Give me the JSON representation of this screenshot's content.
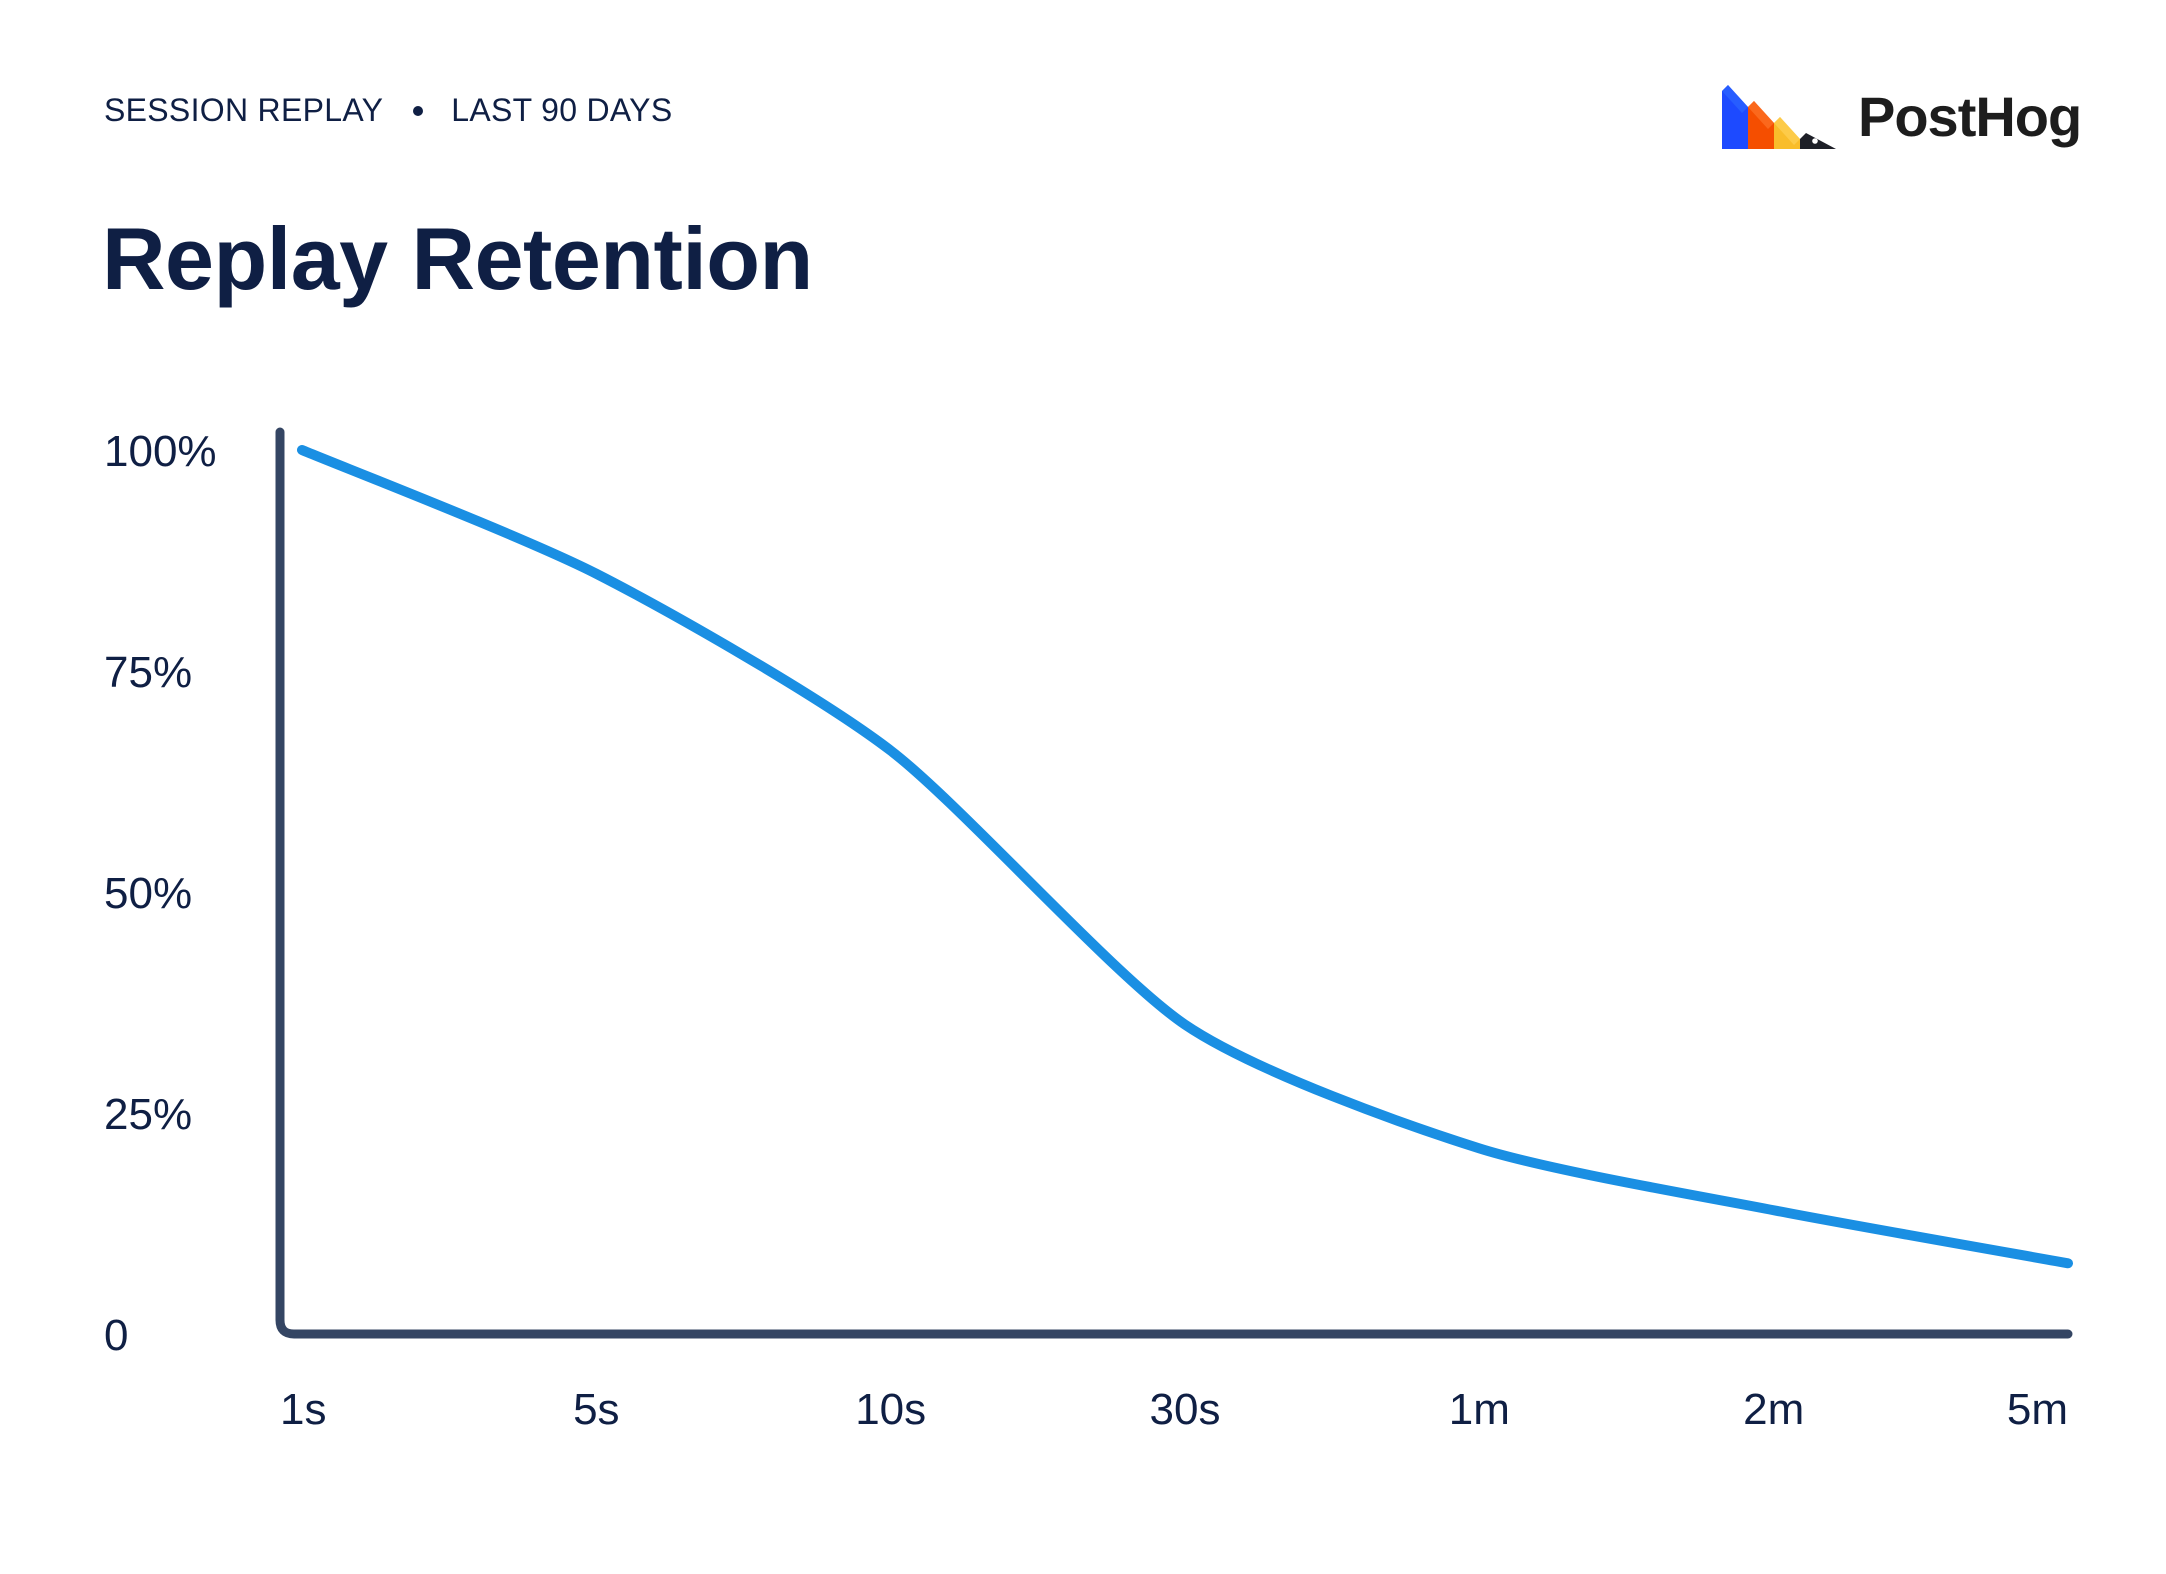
{
  "header": {
    "product": "SESSION REPLAY",
    "period": "LAST 90 DAYS",
    "logo_text": "PostHog"
  },
  "colors": {
    "text": "#0f1f44",
    "axis": "#344563",
    "line": "#1a8fe3",
    "logo_blue": "#1d4aff",
    "logo_orange": "#f54e00",
    "logo_yellow": "#f9bd2b",
    "logo_dark": "#1d1f27"
  },
  "chart_data": {
    "type": "line",
    "title": "Replay Retention",
    "xlabel": "",
    "ylabel": "",
    "categories": [
      "1s",
      "5s",
      "10s",
      "30s",
      "1m",
      "2m",
      "5m"
    ],
    "y_ticks": [
      "0",
      "25%",
      "50%",
      "75%",
      "100%"
    ],
    "ylim": [
      0,
      100
    ],
    "grid": false,
    "series": [
      {
        "values": [
          100,
          86,
          66,
          35,
          21,
          14,
          8
        ]
      }
    ]
  }
}
